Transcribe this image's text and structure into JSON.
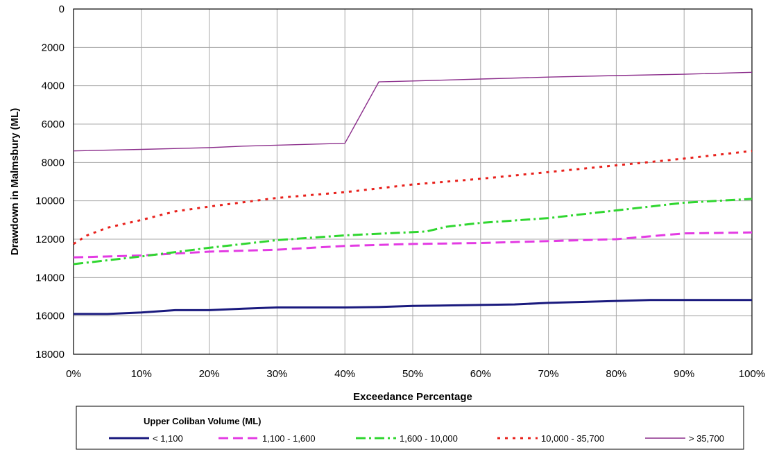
{
  "chart_data": {
    "type": "line",
    "xlabel": "Exceedance Percentage",
    "ylabel": "Drawdown in  Malmsbury (ML)",
    "x_ticks": [
      "0%",
      "10%",
      "20%",
      "30%",
      "40%",
      "50%",
      "60%",
      "70%",
      "80%",
      "90%",
      "100%"
    ],
    "y_ticks": [
      "0",
      "2000",
      "4000",
      "6000",
      "8000",
      "10000",
      "12000",
      "14000",
      "16000",
      "18000"
    ],
    "xlim": [
      0,
      100
    ],
    "ylim": [
      0,
      18000
    ],
    "y_inverted": true,
    "grid": true,
    "legend": {
      "title": "Upper Coliban Volume (ML)",
      "placement": "bottom"
    },
    "series": [
      {
        "name": "< 1,100",
        "color": "#1a1a7e",
        "style": "solid-thick",
        "points": [
          [
            0,
            15900
          ],
          [
            5,
            15900
          ],
          [
            10,
            15820
          ],
          [
            15,
            15700
          ],
          [
            20,
            15700
          ],
          [
            25,
            15620
          ],
          [
            30,
            15560
          ],
          [
            40,
            15560
          ],
          [
            45,
            15540
          ],
          [
            50,
            15480
          ],
          [
            60,
            15430
          ],
          [
            65,
            15400
          ],
          [
            70,
            15320
          ],
          [
            80,
            15220
          ],
          [
            85,
            15170
          ],
          [
            90,
            15170
          ],
          [
            100,
            15170
          ]
        ]
      },
      {
        "name": "1,100 - 1,600",
        "color": "#e33be3",
        "style": "dashed",
        "points": [
          [
            0,
            12950
          ],
          [
            10,
            12850
          ],
          [
            20,
            12650
          ],
          [
            30,
            12550
          ],
          [
            40,
            12350
          ],
          [
            50,
            12250
          ],
          [
            60,
            12200
          ],
          [
            70,
            12100
          ],
          [
            80,
            12000
          ],
          [
            90,
            11700
          ],
          [
            100,
            11650
          ]
        ]
      },
      {
        "name": "1,600 - 10,000",
        "color": "#2fd62f",
        "style": "dashdot",
        "points": [
          [
            0,
            13300
          ],
          [
            10,
            12900
          ],
          [
            20,
            12450
          ],
          [
            30,
            12050
          ],
          [
            40,
            11800
          ],
          [
            52,
            11600
          ],
          [
            55,
            11350
          ],
          [
            60,
            11150
          ],
          [
            70,
            10900
          ],
          [
            80,
            10500
          ],
          [
            90,
            10100
          ],
          [
            100,
            9900
          ]
        ]
      },
      {
        "name": "10,000 - 35,700",
        "color": "#e8211c",
        "style": "dotted",
        "points": [
          [
            0,
            12250
          ],
          [
            2,
            11800
          ],
          [
            5,
            11400
          ],
          [
            10,
            11000
          ],
          [
            15,
            10550
          ],
          [
            20,
            10300
          ],
          [
            30,
            9850
          ],
          [
            40,
            9550
          ],
          [
            50,
            9150
          ],
          [
            60,
            8850
          ],
          [
            70,
            8500
          ],
          [
            80,
            8150
          ],
          [
            90,
            7800
          ],
          [
            100,
            7400
          ]
        ]
      },
      {
        "name": "> 35,700",
        "color": "#8b2d8b",
        "style": "solid-thin",
        "points": [
          [
            0,
            7400
          ],
          [
            10,
            7320
          ],
          [
            20,
            7230
          ],
          [
            25,
            7150
          ],
          [
            30,
            7100
          ],
          [
            40,
            7000
          ],
          [
            45,
            3800
          ],
          [
            50,
            3750
          ],
          [
            60,
            3650
          ],
          [
            70,
            3550
          ],
          [
            80,
            3470
          ],
          [
            90,
            3400
          ],
          [
            100,
            3300
          ]
        ]
      }
    ]
  }
}
